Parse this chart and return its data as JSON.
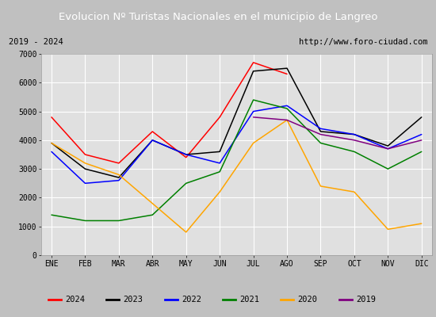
{
  "title": "Evolucion Nº Turistas Nacionales en el municipio de Langreo",
  "subtitle_left": "2019 - 2024",
  "subtitle_right": "http://www.foro-ciudad.com",
  "months": [
    "ENE",
    "FEB",
    "MAR",
    "ABR",
    "MAY",
    "JUN",
    "JUL",
    "AGO",
    "SEP",
    "OCT",
    "NOV",
    "DIC"
  ],
  "ylim": [
    0,
    7000
  ],
  "yticks": [
    0,
    1000,
    2000,
    3000,
    4000,
    5000,
    6000,
    7000
  ],
  "series": {
    "2024": {
      "color": "red",
      "data": [
        4800,
        3500,
        3200,
        4300,
        3400,
        4800,
        6700,
        6300,
        null,
        null,
        null,
        null
      ]
    },
    "2023": {
      "color": "black",
      "data": [
        3900,
        3000,
        2700,
        4000,
        3500,
        3600,
        6400,
        6500,
        4300,
        4200,
        3800,
        4800
      ]
    },
    "2022": {
      "color": "blue",
      "data": [
        3600,
        2500,
        2600,
        4000,
        3500,
        3200,
        5000,
        5200,
        4400,
        4200,
        3700,
        4200
      ]
    },
    "2021": {
      "color": "green",
      "data": [
        1400,
        1200,
        1200,
        1400,
        2500,
        2900,
        5400,
        5100,
        3900,
        3600,
        3000,
        3600
      ]
    },
    "2020": {
      "color": "orange",
      "data": [
        3900,
        3200,
        2800,
        null,
        800,
        2200,
        3900,
        4700,
        2400,
        2200,
        900,
        1100
      ]
    },
    "2019": {
      "color": "purple",
      "data": [
        null,
        null,
        null,
        null,
        null,
        null,
        4800,
        4700,
        4200,
        4000,
        3700,
        4000
      ]
    }
  },
  "title_bg_color": "#4472c4",
  "title_font_color": "white",
  "plot_bg_color": "#e0e0e0",
  "grid_color": "white",
  "box_border_color": "#888888",
  "subtitle_box_color": "white",
  "fig_bg_color": "#c0c0c0",
  "legend_entries": [
    [
      "2024",
      "red"
    ],
    [
      "2023",
      "black"
    ],
    [
      "2022",
      "blue"
    ],
    [
      "2021",
      "green"
    ],
    [
      "2020",
      "orange"
    ],
    [
      "2019",
      "purple"
    ]
  ]
}
